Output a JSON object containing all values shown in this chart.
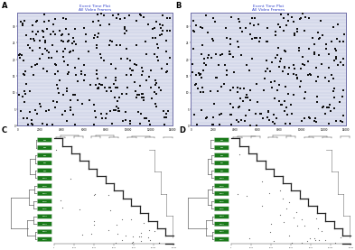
{
  "title_A": "Event Time Plot",
  "subtitle_A": "All Video Frames",
  "title_B": "Event Time Plot",
  "subtitle_B": "All Video Frames",
  "bg_color": "#ffffff",
  "plot_bg_color": "#dde0ee",
  "scatter_color": "#111111",
  "hline_color": "#b0b8d8",
  "border_color": "#7070aa",
  "n_rows_A": 34,
  "n_rows_B": 34,
  "n_dots_A": 320,
  "n_dots_B": 290,
  "x_max": 14000,
  "tree_color": "#555555",
  "box_color": "#1a7a1a",
  "box_text_color": "#ffffff",
  "step_color": "#222222",
  "title_color": "#3344cc",
  "n_behaviors_C": 14,
  "n_behaviors_D": 14,
  "xtick_step": 2000
}
